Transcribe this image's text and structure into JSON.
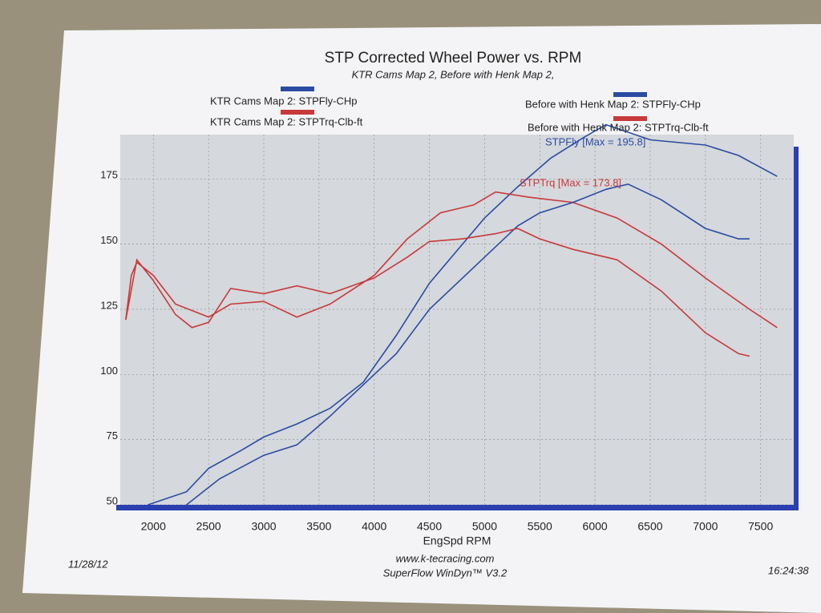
{
  "chart_data": {
    "type": "line",
    "title": "STP Corrected Wheel Power vs. RPM",
    "subtitle": "KTR Cams Map 2, Before with Henk Map 2,",
    "x_label": "EngSpd RPM",
    "xlim": [
      1700,
      7800
    ],
    "xticks": [
      2000,
      2500,
      3000,
      3500,
      4000,
      4500,
      5000,
      5500,
      6000,
      6500,
      7000,
      7500
    ],
    "ylim": [
      50,
      192
    ],
    "yticks": [
      50,
      75,
      100,
      125,
      150,
      175
    ],
    "grid": true,
    "series": [
      {
        "name": "KTR Cams Map 2: STPFly-CHp",
        "color": "#2b4ba3",
        "x": [
          1950,
          2300,
          2500,
          2800,
          3000,
          3300,
          3600,
          3900,
          4200,
          4500,
          4800,
          5000,
          5300,
          5600,
          5900,
          6100,
          6500,
          7000,
          7300,
          7650
        ],
        "values": [
          50,
          55,
          64,
          71,
          76,
          81,
          87,
          97,
          115,
          135,
          150,
          160,
          172,
          183,
          191,
          195.8,
          190,
          188,
          184,
          176
        ]
      },
      {
        "name": "KTR Cams Map 2: STPTrq-Clb-ft",
        "color": "#c8393b",
        "x": [
          1750,
          1800,
          1850,
          2000,
          2200,
          2500,
          2700,
          3000,
          3300,
          3600,
          4000,
          4300,
          4600,
          4900,
          5100,
          5400,
          5800,
          6200,
          6600,
          7000,
          7400,
          7650
        ],
        "values": [
          121,
          138,
          143,
          138,
          127,
          122,
          127,
          128,
          122,
          127,
          138,
          152,
          162,
          165,
          170,
          168,
          166,
          160,
          150,
          137,
          125,
          118
        ]
      },
      {
        "name": "Before with Henk Map 2: STPFly-CHp",
        "color": "#2b4ba3",
        "x": [
          2300,
          2600,
          3000,
          3300,
          3600,
          3900,
          4200,
          4500,
          4800,
          5000,
          5300,
          5500,
          5800,
          6100,
          6300,
          6600,
          7000,
          7300,
          7400
        ],
        "values": [
          50,
          60,
          69,
          73,
          84,
          96,
          108,
          125,
          137,
          145,
          157,
          162,
          166,
          171,
          173,
          167,
          156,
          152,
          152
        ]
      },
      {
        "name": "Before with Henk Map 2: STPTrq-Clb-ft",
        "color": "#c8393b",
        "x": [
          1750,
          1850,
          2000,
          2200,
          2350,
          2500,
          2700,
          3000,
          3300,
          3600,
          4000,
          4300,
          4500,
          4800,
          5100,
          5300,
          5500,
          5800,
          6200,
          6600,
          7000,
          7300,
          7400
        ],
        "values": [
          121,
          144,
          136,
          123,
          118,
          120,
          133,
          131,
          134,
          131,
          137,
          145,
          151,
          152,
          154,
          156,
          152,
          148,
          144,
          132,
          116,
          108,
          107
        ]
      }
    ],
    "annotations": [
      "STPFly [Max = 195.8]",
      "STPTrq [Max = 173.8]"
    ],
    "footer": {
      "date": "11/28/12",
      "url": "www.k-tecracing.com",
      "software": "SuperFlow WinDyn™ V3.2",
      "time": "16:24:38"
    }
  }
}
